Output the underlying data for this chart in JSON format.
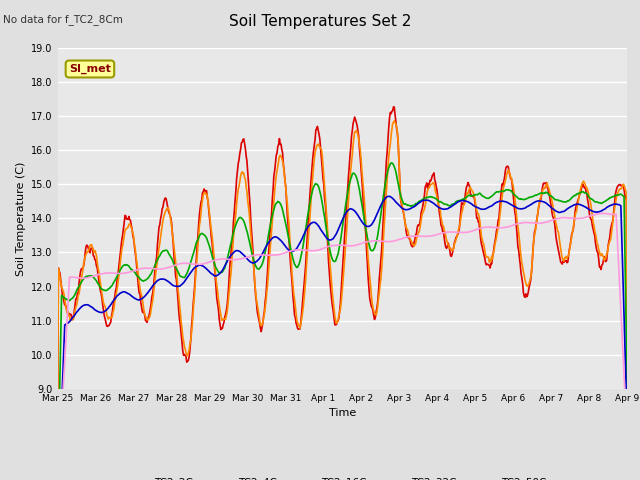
{
  "title": "Soil Temperatures Set 2",
  "ylabel": "Soil Temperature (C)",
  "xlabel": "Time",
  "top_left_note": "No data for f_TC2_8Cm",
  "annotation_box": "SI_met",
  "ylim": [
    9.0,
    19.0
  ],
  "yticks": [
    9.0,
    10.0,
    11.0,
    12.0,
    13.0,
    14.0,
    15.0,
    16.0,
    17.0,
    18.0,
    19.0
  ],
  "bg_color": "#e0e0e0",
  "plot_bg_color": "#e8e8e8",
  "series_colors": {
    "TC2_2Cm": "#dd0000",
    "TC2_4Cm": "#ff8800",
    "TC2_16Cm": "#00aa00",
    "TC2_32Cm": "#0000cc",
    "TC2_50Cm": "#ff99dd"
  },
  "line_width": 1.2,
  "x_labels": [
    "Mar 25",
    "Mar 26",
    "Mar 27",
    "Mar 28",
    "Mar 29",
    "Mar 30",
    "Mar 31",
    "Apr 1",
    "Apr 2",
    "Apr 3",
    "Apr 4",
    "Apr 5",
    "Apr 6",
    "Apr 7",
    "Apr 8",
    "Apr 9"
  ]
}
